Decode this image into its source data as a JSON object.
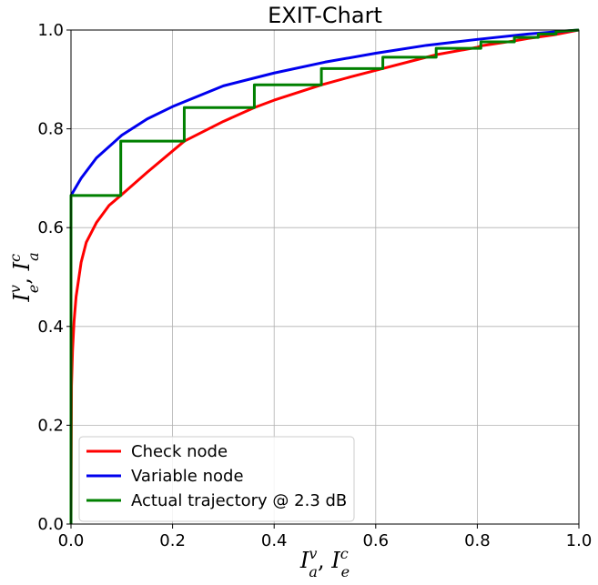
{
  "chart_data": {
    "type": "line",
    "title": "EXIT-Chart",
    "xlabel": {
      "main1": "I",
      "sup1": "v",
      "sub1": "a",
      "sep": ", ",
      "main2": "I",
      "sup2": "c",
      "sub2": "e"
    },
    "ylabel": {
      "main1": "I",
      "sup1": "v",
      "sub1": "e",
      "sep": ", ",
      "main2": "I",
      "sup2": "c",
      "sub2": "a"
    },
    "xlim": [
      0,
      1
    ],
    "ylim": [
      0,
      1
    ],
    "xticks": [
      "0.0",
      "0.2",
      "0.4",
      "0.6",
      "0.8",
      "1.0"
    ],
    "yticks": [
      "0.0",
      "0.2",
      "0.4",
      "0.6",
      "0.8",
      "1.0"
    ],
    "grid": true,
    "legend_position": "bottom-left",
    "series": [
      {
        "name": "Check node",
        "color": "#ff0000",
        "x": [
          0.0,
          0.001,
          0.003,
          0.006,
          0.01,
          0.02,
          0.03,
          0.05,
          0.075,
          0.098,
          0.15,
          0.223,
          0.3,
          0.361,
          0.4,
          0.493,
          0.55,
          0.614,
          0.7,
          0.719,
          0.8,
          0.807,
          0.873,
          0.9,
          0.95,
          1.0
        ],
        "y": [
          0.0,
          0.28,
          0.35,
          0.41,
          0.46,
          0.53,
          0.57,
          0.61,
          0.645,
          0.665,
          0.712,
          0.775,
          0.815,
          0.843,
          0.858,
          0.889,
          0.905,
          0.922,
          0.945,
          0.95,
          0.965,
          0.968,
          0.978,
          0.983,
          0.99,
          1.0
        ]
      },
      {
        "name": "Variable node",
        "color": "#0000ee",
        "x": [
          0.0,
          0.02,
          0.05,
          0.1,
          0.15,
          0.2,
          0.3,
          0.4,
          0.5,
          0.6,
          0.7,
          0.8,
          0.9,
          1.0
        ],
        "y": [
          0.665,
          0.7,
          0.741,
          0.787,
          0.82,
          0.845,
          0.887,
          0.913,
          0.935,
          0.953,
          0.969,
          0.981,
          0.992,
          1.0
        ]
      },
      {
        "name": "Actual trajectory @ 2.3 dB",
        "color": "#008000",
        "x": [
          0.0,
          0.0,
          0.098,
          0.098,
          0.223,
          0.223,
          0.361,
          0.361,
          0.493,
          0.493,
          0.614,
          0.614,
          0.719,
          0.719,
          0.807,
          0.807,
          0.873,
          0.873,
          0.92,
          0.92,
          0.955,
          0.955,
          1.0
        ],
        "y": [
          0.0,
          0.665,
          0.665,
          0.775,
          0.775,
          0.843,
          0.843,
          0.889,
          0.889,
          0.922,
          0.922,
          0.945,
          0.945,
          0.963,
          0.963,
          0.976,
          0.976,
          0.985,
          0.985,
          0.992,
          0.992,
          0.997,
          1.0
        ]
      }
    ]
  }
}
